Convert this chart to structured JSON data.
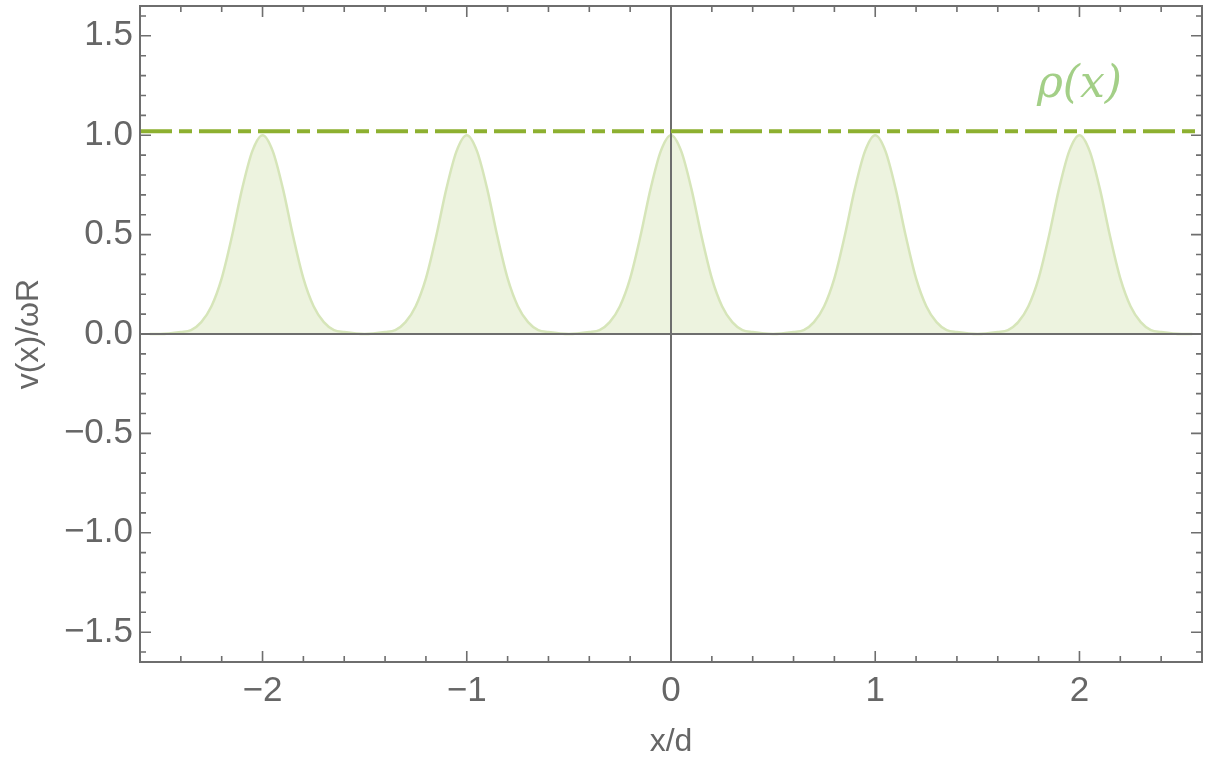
{
  "chart_data": {
    "type": "area",
    "xlabel": "x/d",
    "ylabel": "v(x)/ωR",
    "x": [
      -2.55,
      -2.5,
      -2.4,
      -2.35,
      -2.3,
      -2.25,
      -2.2,
      -2.15,
      -2.1,
      -2.05,
      -2,
      -1.95,
      -1.9,
      -1.85,
      -1.8,
      -1.75,
      -1.7,
      -1.65,
      -1.6,
      -1.5,
      -1.4,
      -1.35,
      -1.3,
      -1.25,
      -1.2,
      -1.15,
      -1.1,
      -1.05,
      -1,
      -0.95,
      -0.9,
      -0.85,
      -0.8,
      -0.75,
      -0.7,
      -0.65,
      -0.6,
      -0.5,
      -0.4,
      -0.35,
      -0.3,
      -0.25,
      -0.2,
      -0.15,
      -0.1,
      -0.05,
      0,
      0.05,
      0.1,
      0.15,
      0.2,
      0.25,
      0.3,
      0.35,
      0.4,
      0.5,
      0.6,
      0.65,
      0.7,
      0.75,
      0.8,
      0.85,
      0.9,
      0.95,
      1,
      1.05,
      1.1,
      1.15,
      1.2,
      1.25,
      1.3,
      1.35,
      1.4,
      1.5,
      1.6,
      1.65,
      1.7,
      1.75,
      1.8,
      1.85,
      1.9,
      1.95,
      2,
      2.05,
      2.1,
      2.15,
      2.2,
      2.25,
      2.3,
      2.35,
      2.4,
      2.5,
      2.55
    ],
    "series": [
      {
        "name": "ρ(x)",
        "color": "#d6e5b9",
        "values": [
          0,
          0,
          0.01,
          0.02,
          0.06,
          0.14,
          0.28,
          0.49,
          0.73,
          0.92,
          1,
          0.92,
          0.73,
          0.49,
          0.28,
          0.14,
          0.06,
          0.02,
          0.01,
          0,
          0.01,
          0.02,
          0.06,
          0.14,
          0.28,
          0.49,
          0.73,
          0.92,
          1,
          0.92,
          0.73,
          0.49,
          0.28,
          0.14,
          0.06,
          0.02,
          0.01,
          0,
          0.01,
          0.02,
          0.06,
          0.14,
          0.28,
          0.49,
          0.73,
          0.92,
          1,
          0.92,
          0.73,
          0.49,
          0.28,
          0.14,
          0.06,
          0.02,
          0.01,
          0,
          0.01,
          0.02,
          0.06,
          0.14,
          0.28,
          0.49,
          0.73,
          0.92,
          1,
          0.92,
          0.73,
          0.49,
          0.28,
          0.14,
          0.06,
          0.02,
          0.01,
          0,
          0.01,
          0.02,
          0.06,
          0.14,
          0.28,
          0.49,
          0.73,
          0.92,
          1,
          0.92,
          0.73,
          0.49,
          0.28,
          0.14,
          0.06,
          0.02,
          0.01,
          0,
          0
        ]
      }
    ],
    "xlim": [
      -2.6,
      2.6
    ],
    "ylim": [
      -1.65,
      1.65
    ],
    "xticks": [
      {
        "value": -2.4,
        "label": null
      },
      {
        "value": -2.2,
        "label": null
      },
      {
        "value": -2,
        "label": "−2"
      },
      {
        "value": -1.8,
        "label": null
      },
      {
        "value": -1.6,
        "label": null
      },
      {
        "value": -1.4,
        "label": null
      },
      {
        "value": -1.2,
        "label": null
      },
      {
        "value": -1,
        "label": "−1"
      },
      {
        "value": -0.8,
        "label": null
      },
      {
        "value": -0.6,
        "label": null
      },
      {
        "value": -0.4,
        "label": null
      },
      {
        "value": -0.2,
        "label": null
      },
      0,
      {
        "value": 0.2,
        "label": null
      },
      {
        "value": 0.4,
        "label": null
      },
      {
        "value": 0.6,
        "label": null
      },
      {
        "value": 0.8,
        "label": null
      },
      1,
      {
        "value": 1.2,
        "label": null
      },
      {
        "value": 1.4,
        "label": null
      },
      {
        "value": 1.6,
        "label": null
      },
      {
        "value": 1.8,
        "label": null
      },
      2,
      {
        "value": 2.2,
        "label": null
      },
      {
        "value": 2.4,
        "label": null
      }
    ],
    "yticks": [
      {
        "value": -1.6,
        "label": null
      },
      {
        "value": -1.5,
        "label": "−1.5"
      },
      {
        "value": -1.4,
        "label": null
      },
      {
        "value": -1.3,
        "label": null
      },
      {
        "value": -1.2,
        "label": null
      },
      {
        "value": -1.1,
        "label": null
      },
      {
        "value": -1,
        "label": "−1.0"
      },
      {
        "value": -0.9,
        "label": null
      },
      {
        "value": -0.8,
        "label": null
      },
      {
        "value": -0.7,
        "label": null
      },
      {
        "value": -0.6,
        "label": null
      },
      {
        "value": -0.5,
        "label": "−0.5"
      },
      {
        "value": -0.4,
        "label": null
      },
      {
        "value": -0.3,
        "label": null
      },
      {
        "value": -0.2,
        "label": null
      },
      {
        "value": -0.1,
        "label": null
      },
      {
        "value": 0,
        "label": "0.0"
      },
      {
        "value": 0.1,
        "label": null
      },
      {
        "value": 0.2,
        "label": null
      },
      {
        "value": 0.3,
        "label": null
      },
      {
        "value": 0.4,
        "label": null
      },
      0.5,
      {
        "value": 0.6,
        "label": null
      },
      {
        "value": 0.7,
        "label": null
      },
      {
        "value": 0.8,
        "label": null
      },
      {
        "value": 0.9,
        "label": null
      },
      {
        "value": 1,
        "label": "1.0"
      },
      {
        "value": 1.1,
        "label": null
      },
      {
        "value": 1.2,
        "label": null
      },
      {
        "value": 1.3,
        "label": null
      },
      {
        "value": 1.4,
        "label": null
      },
      1.5,
      {
        "value": 1.6,
        "label": null
      }
    ],
    "ref_lines": [
      {
        "axis": "x",
        "value": 0,
        "color": "#6e6e6e"
      },
      {
        "axis": "y",
        "value": 0,
        "color": "#6e6e6e"
      },
      {
        "axis": "y",
        "value": 1.02,
        "color": "#8db030",
        "line_style": "dashdot"
      }
    ]
  }
}
